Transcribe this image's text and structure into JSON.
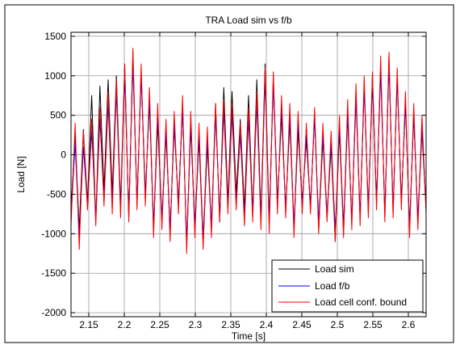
{
  "chart_data": {
    "type": "line",
    "title": "TRA Load sim vs f/b",
    "xlabel": "Time [s]",
    "ylabel": "Load [N]",
    "xlim": [
      2.125,
      2.625
    ],
    "ylim": [
      -2050,
      1550
    ],
    "grid": true,
    "legend_position": "bottom-right",
    "x_ticks": [
      2.15,
      2.2,
      2.25,
      2.3,
      2.35,
      2.4,
      2.45,
      2.5,
      2.55,
      2.6
    ],
    "x_tick_labels": [
      "2.15",
      "2.2",
      "2.25",
      "2.3",
      "2.35",
      "2.4",
      "2.45",
      "2.5",
      "2.55",
      "2.6"
    ],
    "y_ticks": [
      1500,
      1000,
      500,
      0,
      -500,
      -1000,
      -1500,
      -2000
    ],
    "y_tick_labels": [
      "1500",
      "1000",
      "500",
      "0",
      "-500",
      "-1000",
      "-1500",
      "-2000"
    ],
    "x": [
      2.125,
      2.1308,
      2.1366,
      2.1424,
      2.1482,
      2.1541,
      2.1599,
      2.1657,
      2.1715,
      2.1773,
      2.1831,
      2.1889,
      2.1948,
      2.2006,
      2.2064,
      2.2122,
      2.218,
      2.2238,
      2.2297,
      2.2355,
      2.2413,
      2.2471,
      2.2529,
      2.2587,
      2.2645,
      2.2703,
      2.2762,
      2.282,
      2.2878,
      2.2936,
      2.2994,
      2.3052,
      2.311,
      2.3169,
      2.3227,
      2.3285,
      2.3343,
      2.3401,
      2.3459,
      2.3517,
      2.3576,
      2.3634,
      2.3692,
      2.375,
      2.3808,
      2.3866,
      2.3924,
      2.3983,
      2.4041,
      2.4099,
      2.4157,
      2.4215,
      2.4273,
      2.4331,
      2.439,
      2.4448,
      2.4506,
      2.4564,
      2.4622,
      2.468,
      2.4738,
      2.4797,
      2.4855,
      2.4913,
      2.4971,
      2.5029,
      2.5087,
      2.5145,
      2.5203,
      2.5262,
      2.532,
      2.5378,
      2.5436,
      2.5494,
      2.5552,
      2.561,
      2.5669,
      2.5727,
      2.5785,
      2.5843,
      2.5901,
      2.5959,
      2.6017,
      2.6076,
      2.6134,
      2.6192,
      2.625
    ],
    "series": [
      {
        "name": "Load sim",
        "color": "#000000",
        "values": [
          -700,
          250,
          -950,
          320,
          -600,
          750,
          -850,
          870,
          -450,
          950,
          -500,
          1000,
          -650,
          1150,
          -800,
          1300,
          -650,
          1050,
          -500,
          650,
          -950,
          400,
          -850,
          250,
          -950,
          350,
          -600,
          600,
          -1150,
          350,
          -950,
          200,
          -1150,
          120,
          -950,
          650,
          -850,
          850,
          -600,
          800,
          -500,
          450,
          -700,
          750,
          -750,
          950,
          -800,
          1150,
          -850,
          1000,
          -600,
          500,
          -700,
          420,
          -950,
          300,
          -600,
          180,
          -650,
          480,
          -950,
          200,
          -800,
          100,
          -1100,
          300,
          -1000,
          500,
          -850,
          800,
          -800,
          900,
          -700,
          1000,
          -600,
          1150,
          -800,
          1250,
          -750,
          1000,
          -600,
          650,
          -950,
          500,
          -850,
          300,
          -700
        ]
      },
      {
        "name": "Load f/b",
        "color": "#0000ff",
        "values": [
          -800,
          150,
          -1050,
          100,
          -650,
          300,
          -800,
          450,
          -600,
          650,
          -650,
          800,
          -700,
          1000,
          -750,
          1150,
          -600,
          1000,
          -550,
          700,
          -900,
          500,
          -800,
          300,
          -950,
          400,
          -650,
          600,
          -1100,
          400,
          -900,
          250,
          -1050,
          200,
          -900,
          500,
          -750,
          550,
          -650,
          500,
          -600,
          250,
          -800,
          450,
          -750,
          650,
          -800,
          950,
          -850,
          900,
          -650,
          600,
          -700,
          500,
          -900,
          400,
          -650,
          250,
          -650,
          480,
          -850,
          250,
          -750,
          150,
          -950,
          350,
          -900,
          550,
          -850,
          700,
          -800,
          850,
          -700,
          900,
          -600,
          1050,
          -750,
          1150,
          -700,
          950,
          -600,
          650,
          -900,
          500,
          -800,
          350,
          -650
        ]
      },
      {
        "name": "Load cell conf. bound",
        "color": "#ff0000",
        "values": [
          -900,
          400,
          -1200,
          300,
          -700,
          450,
          -900,
          600,
          -650,
          800,
          -750,
          950,
          -800,
          1150,
          -850,
          1350,
          -700,
          1150,
          -650,
          850,
          -1050,
          650,
          -950,
          450,
          -1100,
          550,
          -750,
          750,
          -1250,
          550,
          -1050,
          400,
          -1200,
          350,
          -1050,
          650,
          -850,
          700,
          -750,
          650,
          -700,
          400,
          -900,
          600,
          -850,
          800,
          -950,
          1100,
          -1000,
          1050,
          -750,
          750,
          -800,
          650,
          -1050,
          550,
          -750,
          400,
          -750,
          600,
          -1000,
          400,
          -850,
          300,
          -1100,
          500,
          -1050,
          700,
          -950,
          900,
          -900,
          1000,
          -800,
          1050,
          -700,
          1250,
          -850,
          1300,
          -800,
          1100,
          -700,
          800,
          -1050,
          650,
          -950,
          500,
          -750
        ]
      }
    ]
  }
}
